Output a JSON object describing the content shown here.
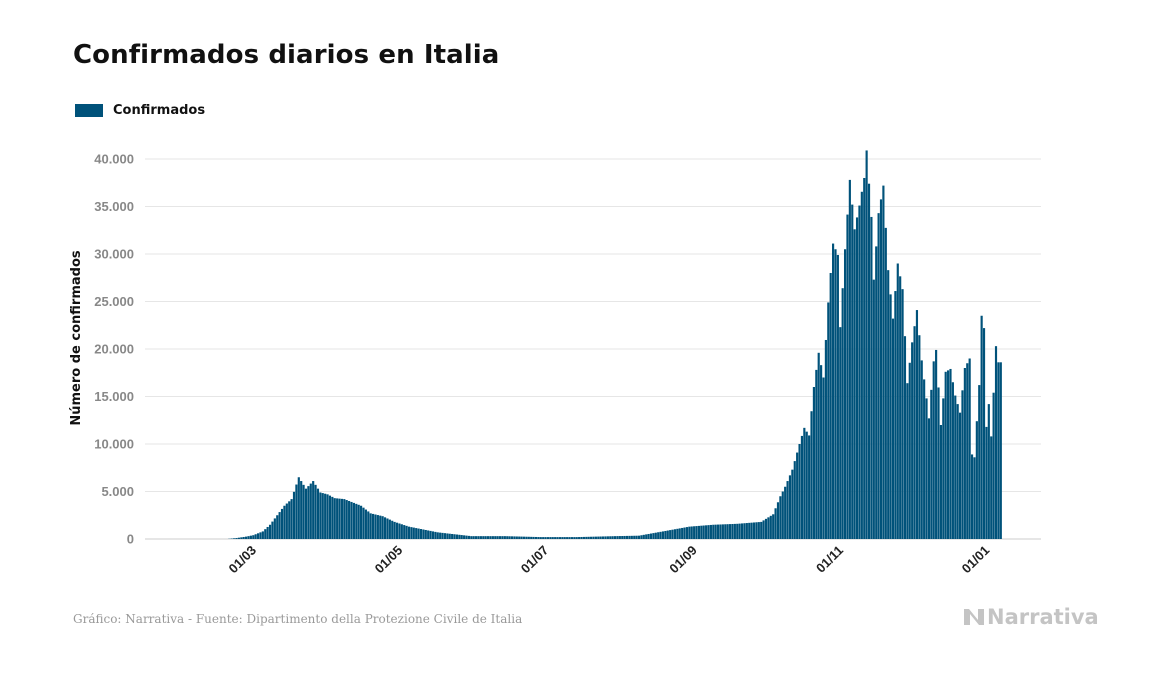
{
  "title": "Confirmados diarios en Italia",
  "legend": {
    "label": "Confirmados",
    "color": "#00527a"
  },
  "source": "Gráfico: Narrativa - Fuente: Dipartimento della Protezione Civile de Italia",
  "logo": {
    "text": "Narrativa",
    "icon": "narrativa-logo-icon"
  },
  "colors": {
    "bar": "#00527a",
    "grid": "#e6e6e6",
    "axis": "#cccccc"
  },
  "chart_data": {
    "type": "bar",
    "title": "Confirmados diarios en Italia",
    "ylabel": "Número de confirmados",
    "xlabel": "",
    "ylim": [
      0,
      42000
    ],
    "yticks": [
      0,
      5000,
      10000,
      15000,
      20000,
      25000,
      30000,
      35000,
      40000
    ],
    "ytick_labels": [
      "0",
      "5.000",
      "10.000",
      "15.000",
      "20.000",
      "25.000",
      "30.000",
      "35.000",
      "40.000"
    ],
    "xtick_labels": [
      "01/03",
      "01/05",
      "01/07",
      "01/09",
      "01/11",
      "01/01"
    ],
    "grid": true,
    "legend_position": "top-left",
    "series": [
      {
        "name": "Confirmados",
        "start_date": "2020-02-01",
        "end_date": "2021-01-08",
        "anchors": [
          [
            "2020-02-01",
            0
          ],
          [
            "2020-02-20",
            0
          ],
          [
            "2020-02-24",
            100
          ],
          [
            "2020-02-28",
            250
          ],
          [
            "2020-03-02",
            400
          ],
          [
            "2020-03-06",
            800
          ],
          [
            "2020-03-09",
            1500
          ],
          [
            "2020-03-12",
            2500
          ],
          [
            "2020-03-15",
            3500
          ],
          [
            "2020-03-18",
            4200
          ],
          [
            "2020-03-21",
            6500
          ],
          [
            "2020-03-24",
            5300
          ],
          [
            "2020-03-27",
            6100
          ],
          [
            "2020-03-30",
            4900
          ],
          [
            "2020-04-02",
            4700
          ],
          [
            "2020-04-05",
            4300
          ],
          [
            "2020-04-09",
            4200
          ],
          [
            "2020-04-12",
            3900
          ],
          [
            "2020-04-16",
            3500
          ],
          [
            "2020-04-20",
            2700
          ],
          [
            "2020-04-25",
            2400
          ],
          [
            "2020-04-30",
            1800
          ],
          [
            "2020-05-06",
            1300
          ],
          [
            "2020-05-12",
            1000
          ],
          [
            "2020-05-18",
            700
          ],
          [
            "2020-05-25",
            500
          ],
          [
            "2020-06-01",
            300
          ],
          [
            "2020-06-15",
            300
          ],
          [
            "2020-06-30",
            200
          ],
          [
            "2020-07-15",
            200
          ],
          [
            "2020-07-31",
            300
          ],
          [
            "2020-08-10",
            350
          ],
          [
            "2020-08-20",
            800
          ],
          [
            "2020-08-31",
            1300
          ],
          [
            "2020-09-10",
            1500
          ],
          [
            "2020-09-20",
            1600
          ],
          [
            "2020-09-30",
            1800
          ],
          [
            "2020-10-05",
            2600
          ],
          [
            "2020-10-08",
            4500
          ],
          [
            "2020-10-10",
            5500
          ],
          [
            "2020-10-13",
            7300
          ],
          [
            "2020-10-16",
            10000
          ],
          [
            "2020-10-18",
            11700
          ],
          [
            "2020-10-20",
            10900
          ],
          [
            "2020-10-22",
            16000
          ],
          [
            "2020-10-24",
            19600
          ],
          [
            "2020-10-26",
            17000
          ],
          [
            "2020-10-28",
            24900
          ],
          [
            "2020-10-30",
            31100
          ],
          [
            "2020-11-01",
            29900
          ],
          [
            "2020-11-02",
            22300
          ],
          [
            "2020-11-04",
            30500
          ],
          [
            "2020-11-06",
            37800
          ],
          [
            "2020-11-08",
            32600
          ],
          [
            "2020-11-10",
            35100
          ],
          [
            "2020-11-12",
            38000
          ],
          [
            "2020-11-13",
            40900
          ],
          [
            "2020-11-15",
            33900
          ],
          [
            "2020-11-16",
            27300
          ],
          [
            "2020-11-18",
            34300
          ],
          [
            "2020-11-20",
            37200
          ],
          [
            "2020-11-22",
            28300
          ],
          [
            "2020-11-24",
            23200
          ],
          [
            "2020-11-26",
            29000
          ],
          [
            "2020-11-28",
            26300
          ],
          [
            "2020-11-30",
            16400
          ],
          [
            "2020-12-02",
            20700
          ],
          [
            "2020-12-04",
            24100
          ],
          [
            "2020-12-06",
            18800
          ],
          [
            "2020-12-08",
            14800
          ],
          [
            "2020-12-09",
            12700
          ],
          [
            "2020-12-11",
            18700
          ],
          [
            "2020-12-12",
            19900
          ],
          [
            "2020-12-14",
            12000
          ],
          [
            "2020-12-16",
            17600
          ],
          [
            "2020-12-18",
            17900
          ],
          [
            "2020-12-20",
            15100
          ],
          [
            "2020-12-22",
            13300
          ],
          [
            "2020-12-24",
            18000
          ],
          [
            "2020-12-26",
            19000
          ],
          [
            "2020-12-27",
            8900
          ],
          [
            "2020-12-28",
            8600
          ],
          [
            "2020-12-30",
            16200
          ],
          [
            "2020-12-31",
            23500
          ],
          [
            "2021-01-01",
            22200
          ],
          [
            "2021-01-02",
            11800
          ],
          [
            "2021-01-03",
            14200
          ],
          [
            "2021-01-04",
            10800
          ],
          [
            "2021-01-05",
            15400
          ],
          [
            "2021-01-06",
            20300
          ],
          [
            "2021-01-07",
            18600
          ],
          [
            "2021-01-08",
            18600
          ]
        ]
      }
    ]
  }
}
